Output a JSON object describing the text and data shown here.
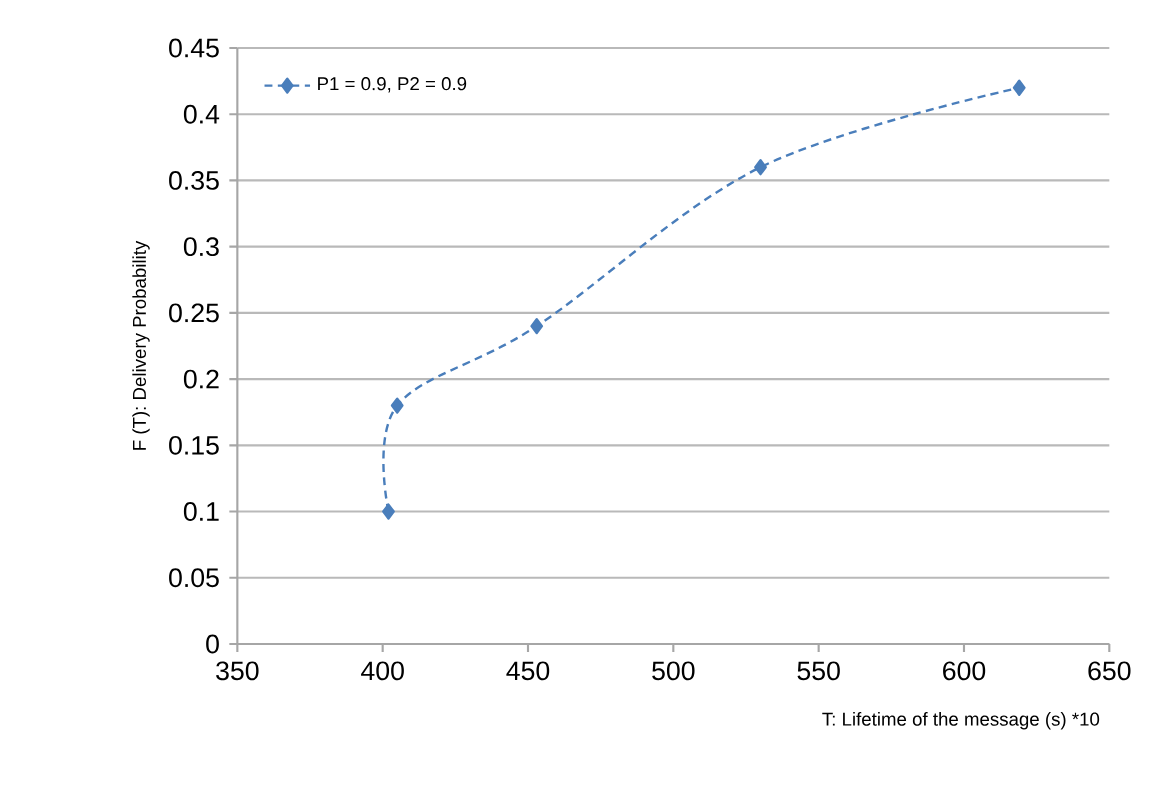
{
  "chart_data": {
    "type": "line",
    "xlabel": "T: Lifetime of the message (s)  *10",
    "ylabel": "F (T): Delivery Probability",
    "xlim": [
      350,
      650
    ],
    "xticks": [
      350,
      400,
      450,
      500,
      550,
      600,
      650
    ],
    "ylim": [
      0,
      0.45
    ],
    "yticks": [
      0,
      0.05,
      0.1,
      0.15,
      0.2,
      0.25,
      0.3,
      0.35,
      0.4,
      0.45
    ],
    "grid": "y",
    "legend": "top left",
    "marker": "diamond",
    "line_style": "dashed",
    "series": [
      {
        "name": "P1 = 0.9, P2 = 0.9",
        "color": "#4a7ebb",
        "x": [
          402,
          405,
          453,
          530,
          619
        ],
        "values": [
          0.1,
          0.18,
          0.24,
          0.36,
          0.42
        ]
      }
    ]
  }
}
